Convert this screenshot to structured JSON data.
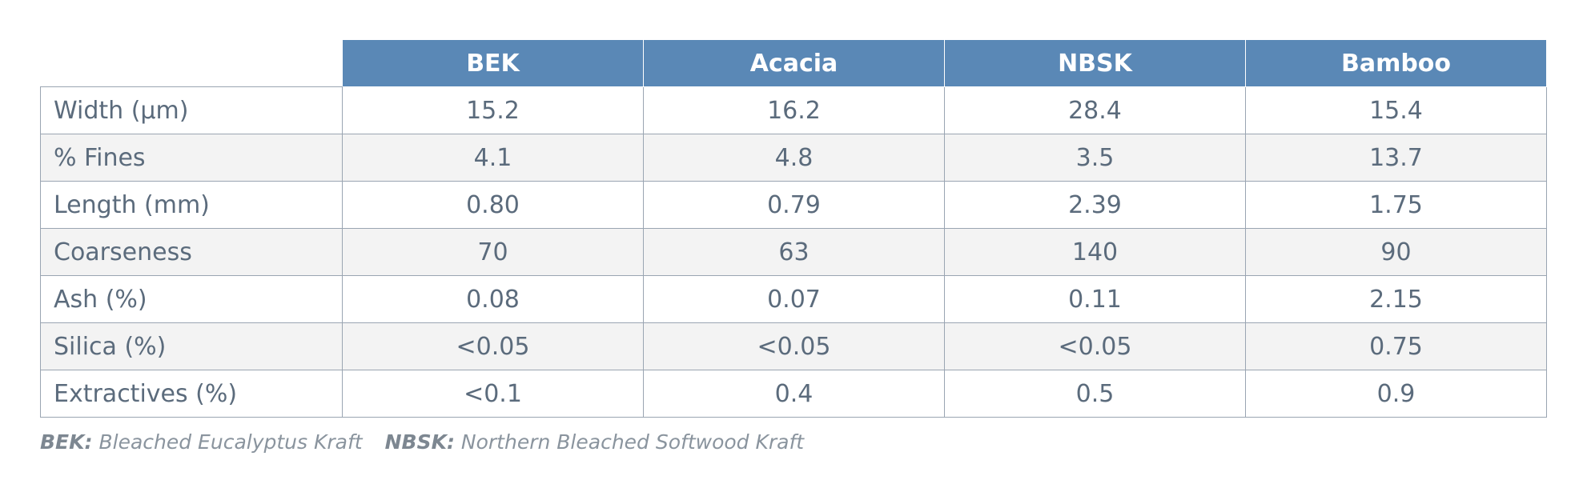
{
  "table": {
    "columns": [
      "BEK",
      "Acacia",
      "NBSK",
      "Bamboo"
    ],
    "rows": [
      {
        "label": "Width (µm)",
        "values": [
          "15.2",
          "16.2",
          "28.4",
          "15.4"
        ]
      },
      {
        "label": "% Fines",
        "values": [
          "4.1",
          "4.8",
          "3.5",
          "13.7"
        ]
      },
      {
        "label": "Length (mm)",
        "values": [
          "0.80",
          "0.79",
          "2.39",
          "1.75"
        ]
      },
      {
        "label": "Coarseness",
        "values": [
          "70",
          "63",
          "140",
          "90"
        ]
      },
      {
        "label": "Ash (%)",
        "values": [
          "0.08",
          "0.07",
          "0.11",
          "2.15"
        ]
      },
      {
        "label": "Silica (%)",
        "values": [
          "<0.05",
          "<0.05",
          "<0.05",
          "0.75"
        ]
      },
      {
        "label": "Extractives (%)",
        "values": [
          "<0.1",
          "0.4",
          "0.5",
          "0.9"
        ]
      }
    ]
  },
  "footnote": [
    {
      "abbr": "BEK:",
      "text": "Bleached Eucalyptus Kraft"
    },
    {
      "abbr": "NBSK:",
      "text": "Northern Bleached Softwood Kraft"
    }
  ]
}
